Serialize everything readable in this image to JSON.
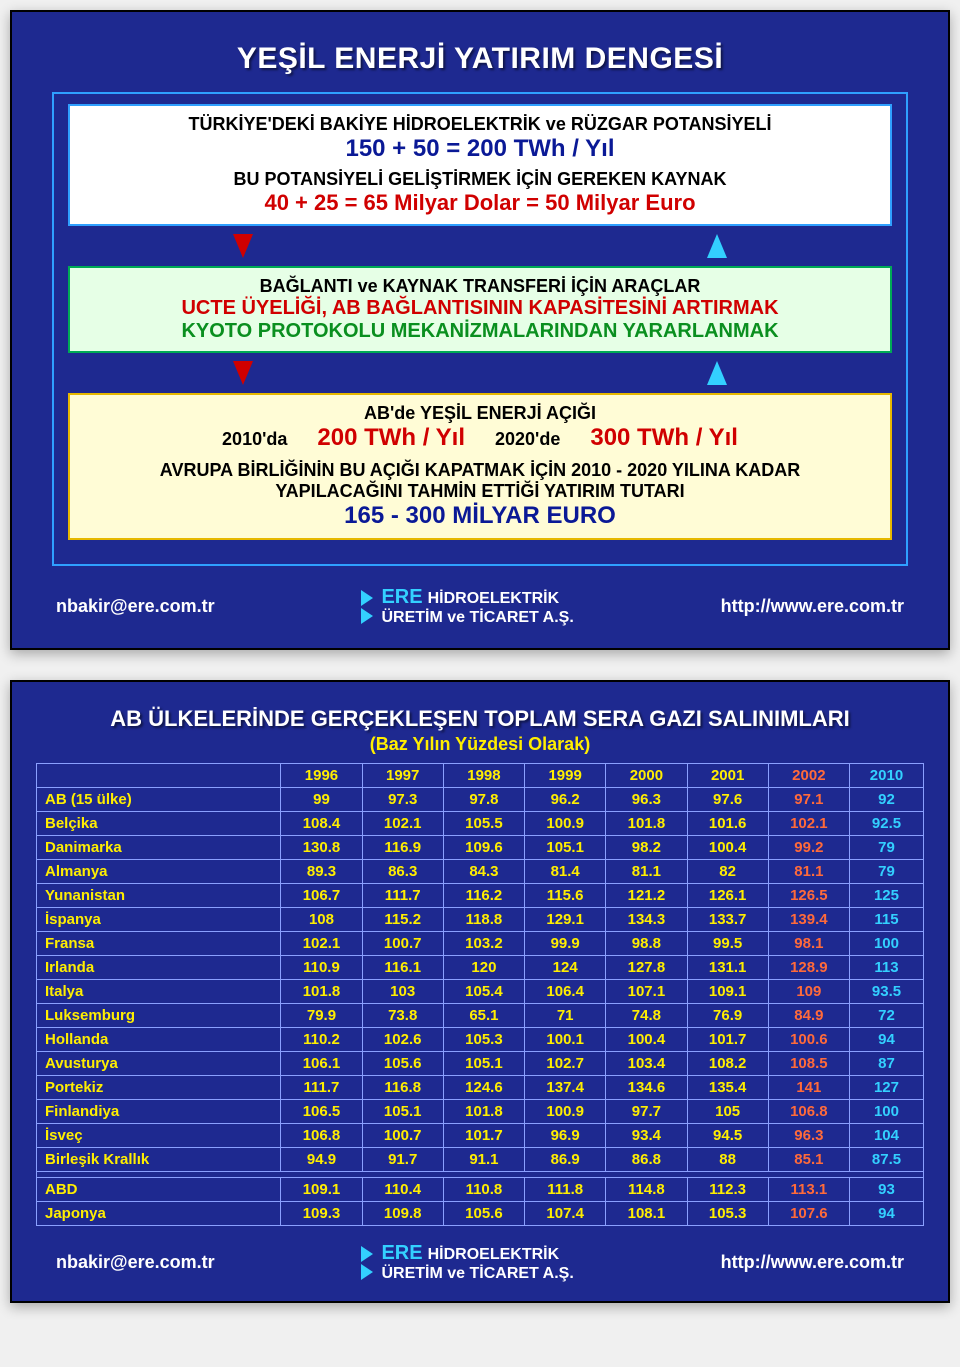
{
  "slide1": {
    "title": "YEŞİL ENERJİ YATIRIM DENGESİ",
    "box1": {
      "line1": "TÜRKİYE'DEKİ BAKİYE HİDROELEKTRİK ve RÜZGAR POTANSİYELİ",
      "line2": "150 + 50 = 200 TWh / Yıl",
      "line3": "BU POTANSİYELİ GELİŞTİRMEK İÇİN GEREKEN KAYNAK",
      "line4": "40 + 25 = 65 Milyar Dolar = 50 Milyar Euro"
    },
    "box2": {
      "line1": "BAĞLANTI ve KAYNAK TRANSFERİ İÇİN ARAÇLAR",
      "line2": "UCTE ÜYELİĞİ, AB BAĞLANTISININ KAPASİTESİNİ ARTIRMAK",
      "line3": "KYOTO PROTOKOLU MEKANİZMALARINDAN YARARLANMAK"
    },
    "box3": {
      "line1": "AB'de YEŞİL ENERJİ AÇIĞI",
      "yr1": "2010'da",
      "val1": "200 TWh / Yıl",
      "yr2": "2020'de",
      "val2": "300 TWh / Yıl",
      "line3a": "AVRUPA BİRLİĞİNİN BU AÇIĞI KAPATMAK İÇİN 2010 - 2020 YILINA KADAR",
      "line3b": "YAPILACAĞINI  TAHMİN ETTİĞİ YATIRIM TUTARI",
      "line4": "165 - 300 MİLYAR EURO"
    }
  },
  "slide2": {
    "title": "AB ÜLKELERİNDE GERÇEKLEŞEN TOPLAM SERA GAZI SALINIMLARI",
    "subtitle": "(Baz Yılın Yüzdesi Olarak)",
    "years": [
      "1996",
      "1997",
      "1998",
      "1999",
      "2000",
      "2001",
      "2002",
      "2010"
    ],
    "hilite2002color": "#ff6a3a",
    "hilite2010color": "#33d0ff",
    "sections": [
      [
        {
          "label": "AB (15 ülke)",
          "vals": [
            "99",
            "97.3",
            "97.8",
            "96.2",
            "96.3",
            "97.6",
            "97.1",
            "92"
          ]
        },
        {
          "label": "Belçika",
          "vals": [
            "108.4",
            "102.1",
            "105.5",
            "100.9",
            "101.8",
            "101.6",
            "102.1",
            "92.5"
          ]
        },
        {
          "label": "Danimarka",
          "vals": [
            "130.8",
            "116.9",
            "109.6",
            "105.1",
            "98.2",
            "100.4",
            "99.2",
            "79"
          ]
        },
        {
          "label": "Almanya",
          "vals": [
            "89.3",
            "86.3",
            "84.3",
            "81.4",
            "81.1",
            "82",
            "81.1",
            "79"
          ]
        },
        {
          "label": "Yunanistan",
          "vals": [
            "106.7",
            "111.7",
            "116.2",
            "115.6",
            "121.2",
            "126.1",
            "126.5",
            "125"
          ]
        },
        {
          "label": "İspanya",
          "vals": [
            "108",
            "115.2",
            "118.8",
            "129.1",
            "134.3",
            "133.7",
            "139.4",
            "115"
          ]
        },
        {
          "label": "Fransa",
          "vals": [
            "102.1",
            "100.7",
            "103.2",
            "99.9",
            "98.8",
            "99.5",
            "98.1",
            "100"
          ]
        },
        {
          "label": "Irlanda",
          "vals": [
            "110.9",
            "116.1",
            "120",
            "124",
            "127.8",
            "131.1",
            "128.9",
            "113"
          ]
        },
        {
          "label": "Italya",
          "vals": [
            "101.8",
            "103",
            "105.4",
            "106.4",
            "107.1",
            "109.1",
            "109",
            "93.5"
          ]
        },
        {
          "label": "Luksemburg",
          "vals": [
            "79.9",
            "73.8",
            "65.1",
            "71",
            "74.8",
            "76.9",
            "84.9",
            "72"
          ]
        },
        {
          "label": "Hollanda",
          "vals": [
            "110.2",
            "102.6",
            "105.3",
            "100.1",
            "100.4",
            "101.7",
            "100.6",
            "94"
          ]
        },
        {
          "label": "Avusturya",
          "vals": [
            "106.1",
            "105.6",
            "105.1",
            "102.7",
            "103.4",
            "108.2",
            "108.5",
            "87"
          ]
        },
        {
          "label": "Portekiz",
          "vals": [
            "111.7",
            "116.8",
            "124.6",
            "137.4",
            "134.6",
            "135.4",
            "141",
            "127"
          ]
        },
        {
          "label": "Finlandiya",
          "vals": [
            "106.5",
            "105.1",
            "101.8",
            "100.9",
            "97.7",
            "105",
            "106.8",
            "100"
          ]
        },
        {
          "label": "İsveç",
          "vals": [
            "106.8",
            "100.7",
            "101.7",
            "96.9",
            "93.4",
            "94.5",
            "96.3",
            "104"
          ]
        },
        {
          "label": "Birleşik Krallık",
          "vals": [
            "94.9",
            "91.7",
            "91.1",
            "86.9",
            "86.8",
            "88",
            "85.1",
            "87.5"
          ]
        }
      ],
      [
        {
          "label": "ABD",
          "vals": [
            "109.1",
            "110.4",
            "110.8",
            "111.8",
            "114.8",
            "112.3",
            "113.1",
            "93"
          ]
        },
        {
          "label": "Japonya",
          "vals": [
            "109.3",
            "109.8",
            "105.6",
            "107.4",
            "108.1",
            "105.3",
            "107.6",
            "94"
          ]
        }
      ]
    ]
  },
  "footer": {
    "email": "nbakir@ere.com.tr",
    "brand": "ERE",
    "company1": "HİDROELEKTRİK",
    "company2": "ÜRETİM ve TİCARET A.Ş.",
    "url": "http://www.ere.com.tr"
  },
  "colors": {
    "slide_bg": "#1e2990",
    "yellow_text": "#ffee00",
    "red_text": "#d00000",
    "green_text": "#0a8f1f",
    "blue_accent": "#33d0ff"
  }
}
